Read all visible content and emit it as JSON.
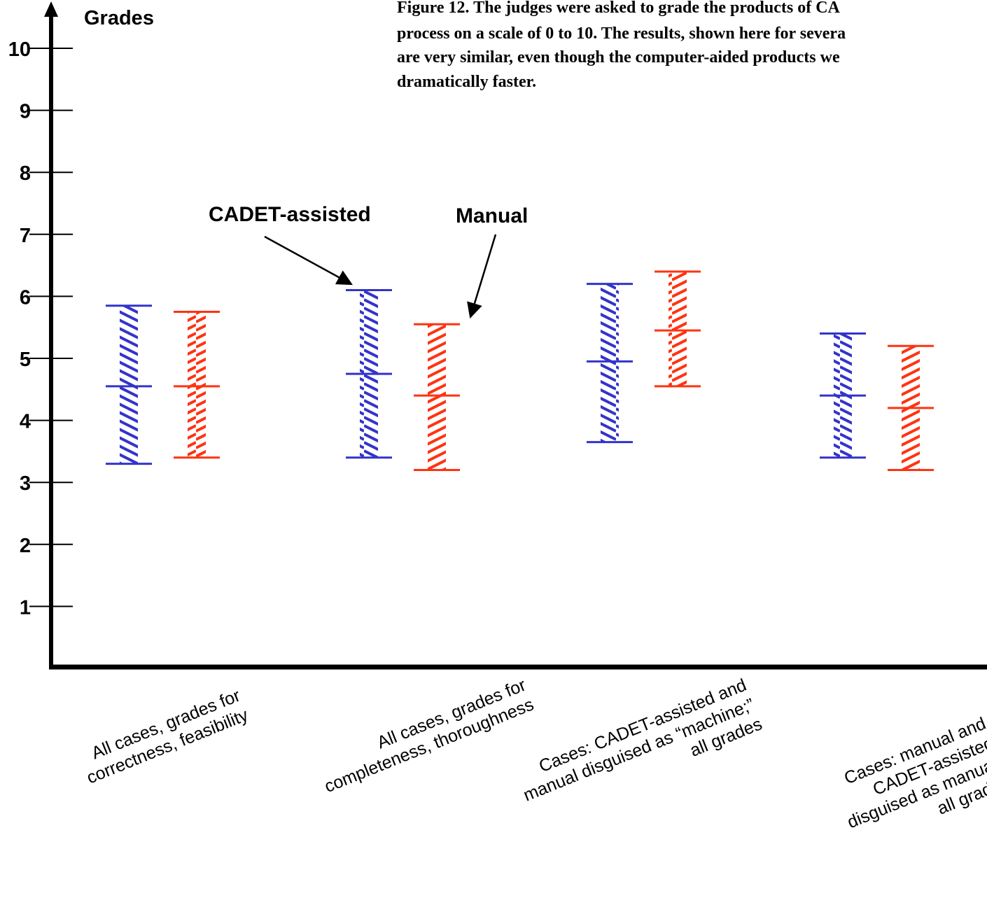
{
  "chart_data": {
    "type": "errorbar",
    "title_lines": [
      "Figure 12. The judges were asked to grade the products of CA",
      "process on a scale of 0 to 10. The results, shown here for severa",
      "are very similar, even though the computer-aided products we",
      "dramatically faster."
    ],
    "ylabel": "Grades",
    "ylim": [
      0,
      10.6
    ],
    "yticks": [
      "1",
      "2",
      "3",
      "4",
      "5",
      "6",
      "7",
      "8",
      "9",
      "10"
    ],
    "categories": [
      {
        "lines": [
          "All cases, grades for",
          "correctness, feasibility"
        ]
      },
      {
        "lines": [
          "All cases, grades for",
          "completeness, thoroughness"
        ]
      },
      {
        "lines": [
          "Cases: CADET-assisted and",
          "manual disguised as “machine;”",
          "all grades"
        ]
      },
      {
        "lines": [
          "Cases: manual and",
          "CADET-assisted",
          "disguised as manual;",
          "all grades"
        ]
      }
    ],
    "series": [
      {
        "name": "CADET-assisted",
        "color": "#3333cc",
        "low": [
          3.3,
          3.4,
          3.65,
          3.4
        ],
        "mid": [
          4.55,
          4.75,
          4.95,
          4.4
        ],
        "high": [
          5.85,
          6.1,
          6.2,
          5.4
        ]
      },
      {
        "name": "Manual",
        "color": "#ff3311",
        "low": [
          3.4,
          3.2,
          4.55,
          3.2
        ],
        "mid": [
          4.55,
          4.4,
          5.45,
          4.2
        ],
        "high": [
          5.75,
          5.55,
          6.4,
          5.2
        ]
      }
    ],
    "annotations": [
      {
        "text": "CADET-assisted",
        "points_to": "CADET-assisted, category 2"
      },
      {
        "text": "Manual",
        "points_to": "Manual, category 2"
      }
    ]
  }
}
